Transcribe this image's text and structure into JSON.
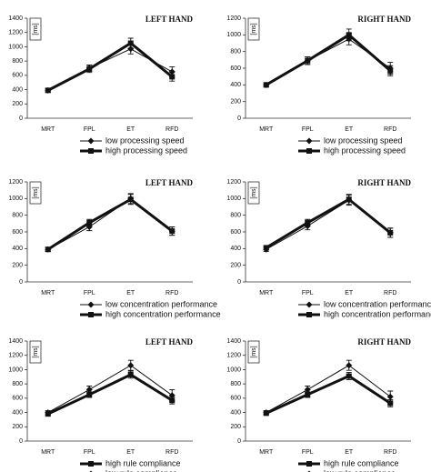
{
  "chart_data": [
    {
      "type": "line",
      "title": "LEFT HAND",
      "ylabel": "[ms]",
      "categories": [
        "MRT",
        "FPL",
        "ET",
        "RFD"
      ],
      "ylim": [
        0,
        1400
      ],
      "yticks": [
        0,
        200,
        400,
        600,
        800,
        1000,
        1200,
        1400
      ],
      "series": [
        {
          "name": "low processing speed",
          "color": "#111111",
          "marker": "diamond",
          "line_width": 1,
          "values": [
            390,
            700,
            970,
            650
          ],
          "errors": [
            25,
            45,
            70,
            70
          ]
        },
        {
          "name": "high processing speed",
          "color": "#111111",
          "marker": "square",
          "line_width": 3,
          "values": [
            390,
            690,
            1050,
            580
          ],
          "errors": [
            25,
            50,
            70,
            60
          ]
        }
      ]
    },
    {
      "type": "line",
      "title": "RIGHT HAND",
      "ylabel": "[ms]",
      "categories": [
        "MRT",
        "FPL",
        "ET",
        "RFD"
      ],
      "ylim": [
        0,
        1200
      ],
      "yticks": [
        0,
        200,
        400,
        600,
        800,
        1000,
        1200
      ],
      "series": [
        {
          "name": "low processing speed",
          "color": "#111111",
          "marker": "diamond",
          "line_width": 1,
          "values": [
            400,
            690,
            950,
            600
          ],
          "errors": [
            25,
            45,
            70,
            70
          ]
        },
        {
          "name": "high processing speed",
          "color": "#111111",
          "marker": "square",
          "line_width": 3,
          "values": [
            400,
            690,
            1000,
            570
          ],
          "errors": [
            25,
            45,
            70,
            60
          ]
        }
      ]
    },
    {
      "type": "line",
      "title": "LEFT HAND",
      "ylabel": "[ms]",
      "categories": [
        "MRT",
        "FPL",
        "ET",
        "RFD"
      ],
      "ylim": [
        0,
        1200
      ],
      "yticks": [
        0,
        200,
        400,
        600,
        800,
        1000,
        1200
      ],
      "series": [
        {
          "name": "low concentration performance",
          "color": "#111111",
          "marker": "diamond",
          "line_width": 1,
          "values": [
            390,
            660,
            1000,
            610
          ],
          "errors": [
            25,
            45,
            60,
            50
          ]
        },
        {
          "name": "high concentration performance",
          "color": "#111111",
          "marker": "square",
          "line_width": 3,
          "values": [
            390,
            710,
            990,
            610
          ],
          "errors": [
            25,
            40,
            60,
            50
          ]
        }
      ]
    },
    {
      "type": "line",
      "title": "RIGHT HAND",
      "ylabel": "[ms]",
      "categories": [
        "MRT",
        "FPL",
        "ET",
        "RFD"
      ],
      "ylim": [
        0,
        1200
      ],
      "yticks": [
        0,
        200,
        400,
        600,
        800,
        1000,
        1200
      ],
      "series": [
        {
          "name": "low concentration performance",
          "color": "#111111",
          "marker": "diamond",
          "line_width": 1,
          "values": [
            390,
            670,
            980,
            590
          ],
          "errors": [
            25,
            45,
            60,
            55
          ]
        },
        {
          "name": "high concentration performance",
          "color": "#111111",
          "marker": "square",
          "line_width": 3,
          "values": [
            410,
            710,
            990,
            590
          ],
          "errors": [
            25,
            40,
            60,
            55
          ]
        }
      ]
    },
    {
      "type": "line",
      "title": "LEFT HAND",
      "ylabel": "[ms]",
      "categories": [
        "MRT",
        "FPL",
        "ET",
        "RFD"
      ],
      "ylim": [
        0,
        1400
      ],
      "yticks": [
        0,
        200,
        400,
        600,
        800,
        1000,
        1200,
        1400
      ],
      "series": [
        {
          "name": "high rule compliance",
          "color": "#111111",
          "marker": "square",
          "line_width": 3,
          "values": [
            380,
            650,
            930,
            570
          ],
          "errors": [
            25,
            40,
            50,
            50
          ]
        },
        {
          "name": "low  rule compliance",
          "color": "#111111",
          "marker": "diamond",
          "line_width": 1,
          "values": [
            400,
            720,
            1060,
            640
          ],
          "errors": [
            25,
            50,
            70,
            80
          ]
        }
      ]
    },
    {
      "type": "line",
      "title": "RIGHT HAND",
      "ylabel": "[ms]",
      "categories": [
        "MRT",
        "FPL",
        "ET",
        "RFD"
      ],
      "ylim": [
        0,
        1400
      ],
      "yticks": [
        0,
        200,
        400,
        600,
        800,
        1000,
        1200,
        1400
      ],
      "series": [
        {
          "name": "high rule compliance",
          "color": "#111111",
          "marker": "square",
          "line_width": 3,
          "values": [
            390,
            650,
            910,
            530
          ],
          "errors": [
            25,
            40,
            50,
            50
          ]
        },
        {
          "name": "low  rule compliance",
          "color": "#111111",
          "marker": "diamond",
          "line_width": 1,
          "values": [
            400,
            720,
            1060,
            620
          ],
          "errors": [
            25,
            50,
            70,
            80
          ]
        }
      ]
    }
  ]
}
